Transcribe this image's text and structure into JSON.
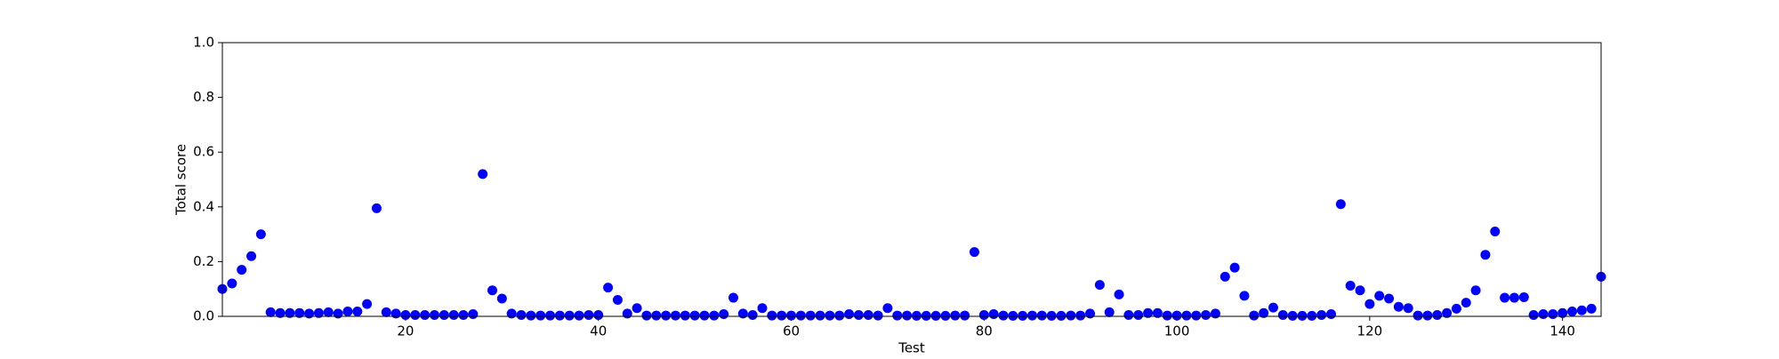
{
  "chart_data": {
    "type": "scatter",
    "xlabel": "Test",
    "ylabel": "Total score",
    "color": "#0000ff",
    "x": [
      1,
      2,
      3,
      4,
      5,
      6,
      7,
      8,
      9,
      10,
      11,
      12,
      13,
      14,
      15,
      16,
      17,
      18,
      19,
      20,
      21,
      22,
      23,
      24,
      25,
      26,
      27,
      28,
      29,
      30,
      31,
      32,
      33,
      34,
      35,
      36,
      37,
      38,
      39,
      40,
      41,
      42,
      43,
      44,
      45,
      46,
      47,
      48,
      49,
      50,
      51,
      52,
      53,
      54,
      55,
      56,
      57,
      58,
      59,
      60,
      61,
      62,
      63,
      64,
      65,
      66,
      67,
      68,
      69,
      70,
      71,
      72,
      73,
      74,
      75,
      76,
      77,
      78,
      79,
      80,
      81,
      82,
      83,
      84,
      85,
      86,
      87,
      88,
      89,
      90,
      91,
      92,
      93,
      94,
      95,
      96,
      97,
      98,
      99,
      100,
      101,
      102,
      103,
      104,
      105,
      106,
      107,
      108,
      109,
      110,
      111,
      112,
      113,
      114,
      115,
      116,
      117,
      118,
      119,
      120,
      121,
      122,
      123,
      124,
      125,
      126,
      127,
      128,
      129,
      130,
      131,
      132,
      133,
      134,
      135,
      136,
      137,
      138,
      139,
      140,
      141,
      142,
      143,
      144
    ],
    "values": [
      0.1,
      0.12,
      0.17,
      0.22,
      0.3,
      0.015,
      0.012,
      0.012,
      0.012,
      0.01,
      0.012,
      0.015,
      0.01,
      0.018,
      0.018,
      0.045,
      0.395,
      0.015,
      0.01,
      0.005,
      0.005,
      0.005,
      0.005,
      0.005,
      0.005,
      0.005,
      0.008,
      0.52,
      0.095,
      0.065,
      0.01,
      0.005,
      0.003,
      0.003,
      0.003,
      0.003,
      0.003,
      0.003,
      0.005,
      0.005,
      0.105,
      0.06,
      0.01,
      0.03,
      0.003,
      0.003,
      0.003,
      0.003,
      0.003,
      0.003,
      0.003,
      0.003,
      0.008,
      0.068,
      0.01,
      0.005,
      0.03,
      0.003,
      0.003,
      0.003,
      0.003,
      0.003,
      0.003,
      0.003,
      0.003,
      0.008,
      0.005,
      0.005,
      0.003,
      0.03,
      0.003,
      0.003,
      0.002,
      0.002,
      0.002,
      0.002,
      0.003,
      0.003,
      0.235,
      0.005,
      0.008,
      0.003,
      0.002,
      0.002,
      0.003,
      0.003,
      0.002,
      0.002,
      0.003,
      0.003,
      0.01,
      0.115,
      0.015,
      0.08,
      0.005,
      0.005,
      0.012,
      0.012,
      0.003,
      0.003,
      0.003,
      0.003,
      0.005,
      0.01,
      0.145,
      0.178,
      0.075,
      0.003,
      0.012,
      0.032,
      0.005,
      0.002,
      0.002,
      0.002,
      0.005,
      0.008,
      0.41,
      0.112,
      0.095,
      0.045,
      0.075,
      0.065,
      0.035,
      0.03,
      0.003,
      0.003,
      0.005,
      0.012,
      0.028,
      0.05,
      0.095,
      0.225,
      0.31,
      0.068,
      0.068,
      0.07,
      0.005,
      0.008,
      0.008,
      0.012,
      0.018,
      0.022,
      0.028,
      0.145
    ],
    "xlim": [
      1,
      144
    ],
    "xticks": [
      20,
      40,
      60,
      80,
      100,
      120,
      140
    ],
    "ylim": [
      0,
      1
    ],
    "yticks": [
      {
        "value": 0,
        "label": "0.0"
      },
      0.2,
      0.4,
      0.6,
      0.8,
      {
        "value": 1,
        "label": "1.0"
      }
    ]
  }
}
